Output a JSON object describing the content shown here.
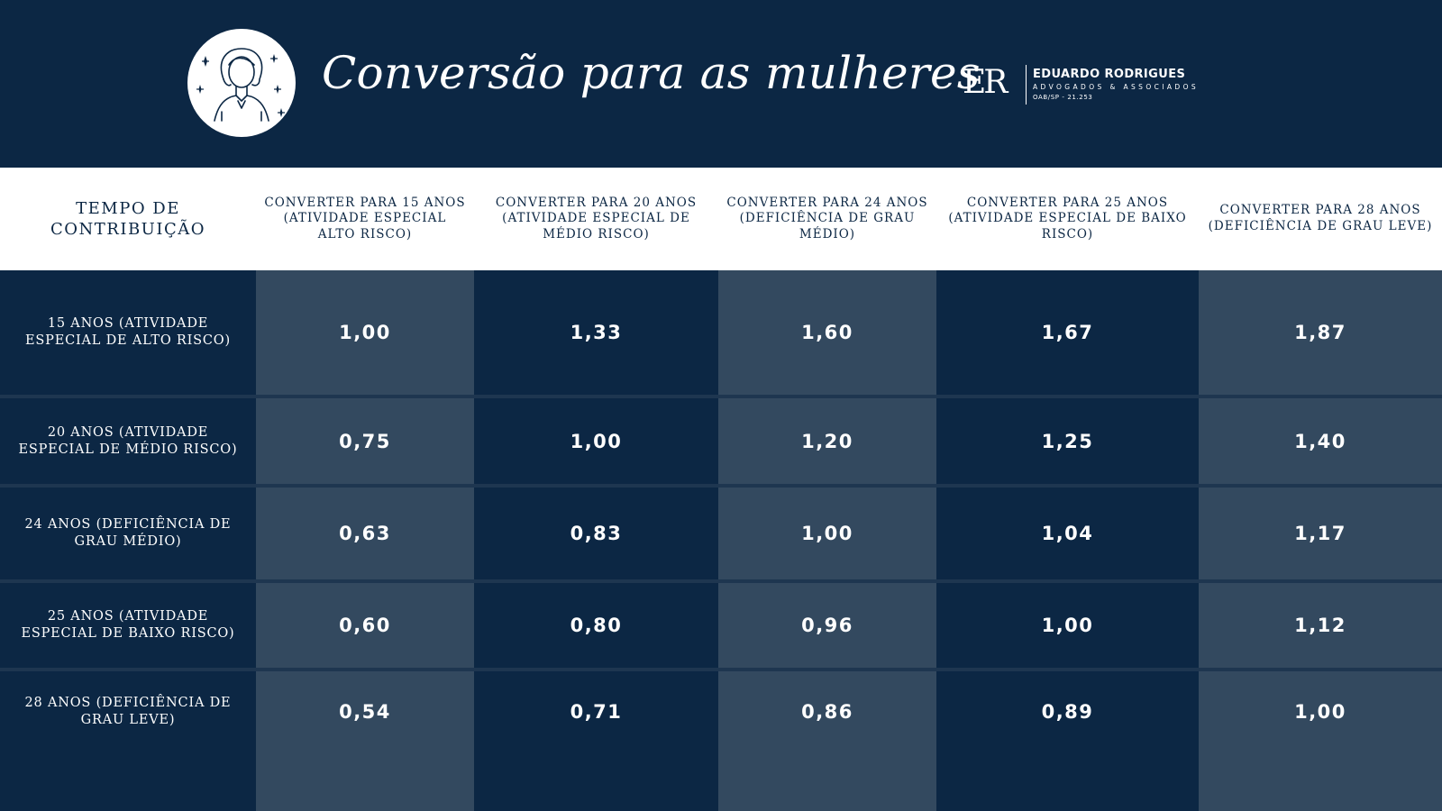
{
  "header": {
    "title": "Conversão para as mulheres",
    "logo": {
      "mark": "ER",
      "name": "EDUARDO RODRIGUES",
      "subtitle": "ADVOGADOS & ASSOCIADOS",
      "registration": "OAB/SP - 21.253"
    },
    "avatar_icon": "woman-avatar-icon"
  },
  "colors": {
    "background": "#0c2744",
    "header_row": "#ffffff",
    "column_light": "#33495f",
    "column_dark": "#0c2744",
    "text_light": "#ffffff",
    "text_dark": "#0c2744"
  },
  "chart_data": {
    "type": "table",
    "title": "Conversão para as mulheres",
    "columns": [
      "TEMPO DE CONTRIBUIÇÃO",
      "CONVERTER PARA 15 ANOS (ATIVIDADE ESPECIAL ALTO RISCO)",
      "CONVERTER PARA 20 ANOS (ATIVIDADE ESPECIAL DE MÉDIO RISCO)",
      "CONVERTER PARA 24 ANOS (DEFICIÊNCIA DE GRAU MÉDIO)",
      "CONVERTER PARA 25 ANOS (ATIVIDADE ESPECIAL DE BAIXO RISCO)",
      "CONVERTER PARA 28 ANOS (DEFICIÊNCIA DE GRAU LEVE)"
    ],
    "rows": [
      {
        "label": "15 ANOS (ATIVIDADE ESPECIAL DE ALTO RISCO)",
        "values": [
          "1,00",
          "1,33",
          "1,60",
          "1,67",
          "1,87"
        ]
      },
      {
        "label": "20 ANOS (ATIVIDADE ESPECIAL DE MÉDIO RISCO)",
        "values": [
          "0,75",
          "1,00",
          "1,20",
          "1,25",
          "1,40"
        ]
      },
      {
        "label": "24 ANOS (DEFICIÊNCIA DE GRAU MÉDIO)",
        "values": [
          "0,63",
          "0,83",
          "1,00",
          "1,04",
          "1,17"
        ]
      },
      {
        "label": "25 ANOS (ATIVIDADE ESPECIAL DE BAIXO RISCO)",
        "values": [
          "0,60",
          "0,80",
          "0,96",
          "1,00",
          "1,12"
        ]
      },
      {
        "label": "28 ANOS (DEFICIÊNCIA DE GRAU LEVE)",
        "values": [
          "0,54",
          "0,71",
          "0,86",
          "0,89",
          "1,00"
        ]
      }
    ]
  }
}
